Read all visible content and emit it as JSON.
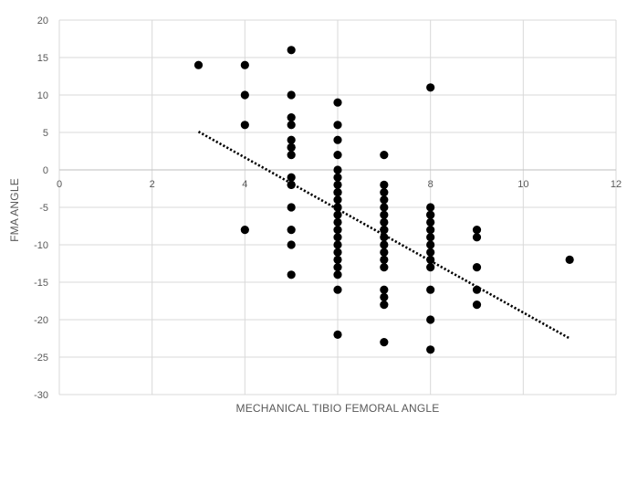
{
  "chart_data": {
    "type": "scatter",
    "title": "",
    "xlabel": "MECHANICAL TIBIO FEMORAL ANGLE",
    "ylabel": "FMA ANGLE",
    "xlim": [
      0,
      12
    ],
    "ylim": [
      -30,
      20
    ],
    "xticks": [
      0,
      2,
      4,
      6,
      8,
      10,
      12
    ],
    "yticks": [
      -30,
      -25,
      -20,
      -15,
      -10,
      -5,
      0,
      5,
      10,
      15,
      20
    ],
    "grid": true,
    "legend": "none",
    "marker_color": "#000000",
    "series": [
      {
        "x": [
          3,
          4,
          4,
          4,
          4,
          5,
          5,
          5,
          5,
          5,
          5,
          5,
          5,
          5,
          5,
          5,
          5,
          5,
          5,
          5,
          6,
          6,
          6,
          6,
          6,
          6,
          6,
          6,
          6,
          6,
          6,
          6,
          6,
          6,
          6,
          6,
          6,
          6,
          6,
          6,
          6,
          6,
          6,
          7,
          7,
          7,
          7,
          7,
          7,
          7,
          7,
          7,
          7,
          7,
          7,
          7,
          7,
          7,
          7,
          7,
          7,
          8,
          8,
          8,
          8,
          8,
          8,
          8,
          8,
          8,
          8,
          8,
          8,
          8,
          8,
          9,
          9,
          9,
          9,
          9,
          11
        ],
        "y": [
          14,
          14,
          10,
          6,
          -8,
          16,
          10,
          7,
          6,
          4,
          3,
          2,
          -1,
          -2,
          -5,
          -8,
          -10,
          -14,
          -2,
          3,
          9,
          6,
          4,
          2,
          0,
          -1,
          -2,
          -3,
          -4,
          -5,
          -6,
          -7,
          -8,
          -9,
          -10,
          -11,
          -12,
          -13,
          -14,
          -16,
          -22,
          -5,
          -3,
          2,
          -2,
          -4,
          -6,
          -7,
          -8,
          -9,
          -10,
          -11,
          -12,
          -13,
          -16,
          -17,
          -18,
          -23,
          -8,
          -5,
          -3,
          11,
          -5,
          -6,
          -7,
          -8,
          -9,
          -10,
          -12,
          -13,
          -16,
          -20,
          -24,
          -11,
          -6,
          -8,
          -9,
          -13,
          -16,
          -18,
          -12
        ]
      }
    ],
    "trendline": {
      "style": "dotted",
      "x": [
        3,
        11
      ],
      "y": [
        5.1,
        -22.5
      ]
    }
  }
}
